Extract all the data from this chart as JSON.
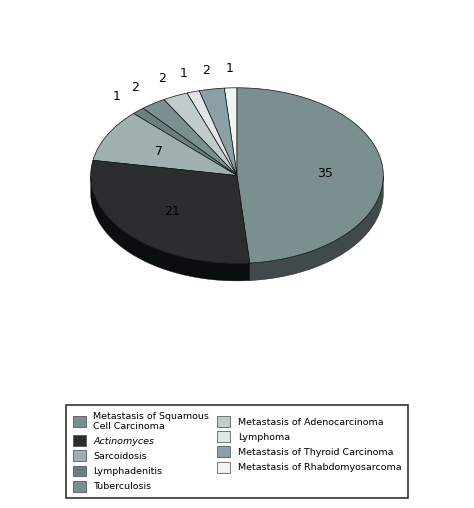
{
  "labels": [
    "Metastasis of Squamous\nCell Carcinoma",
    "Actinomyces",
    "Sarcoidosis",
    "Lymphadenitis",
    "Tuberculosis",
    "Metastasis of Adenocarcinoma",
    "Lymphoma",
    "Metastasis of Thyroid Carcinoma",
    "Metastasis of Rhabdomyosarcoma"
  ],
  "values": [
    35,
    21,
    7,
    1,
    2,
    2,
    1,
    2,
    1
  ],
  "top_colors": [
    "#7a8f90",
    "#2a2e2e",
    "#a0b0b0",
    "#6a8080",
    "#7a8f90",
    "#c0cccc",
    "#e0e6e6",
    "#8aa0a4",
    "#f0f4f4"
  ],
  "side_colors": [
    "#404a4a",
    "#0a0e0e",
    "#505a5a",
    "#384040",
    "#404a4a",
    "#687474",
    "#909898",
    "#485454",
    "#a0aaa8"
  ],
  "startangle": 90,
  "background_color": "#ffffff",
  "figure_width": 4.74,
  "figure_height": 5.08,
  "depth": 0.12,
  "legend_labels_left": [
    "Metastasis of Squamous\nCell Carcinoma",
    "Actinomyces",
    "Sarcoidosis",
    "Lymphadenitis"
  ],
  "legend_labels_right": [
    "Tuberculosis",
    "Metastasis of Adenocarcinoma",
    "Lymphoma",
    "Metastasis of Thyroid Carcinoma",
    "Metastasis of Rhabdomyosarcoma"
  ]
}
